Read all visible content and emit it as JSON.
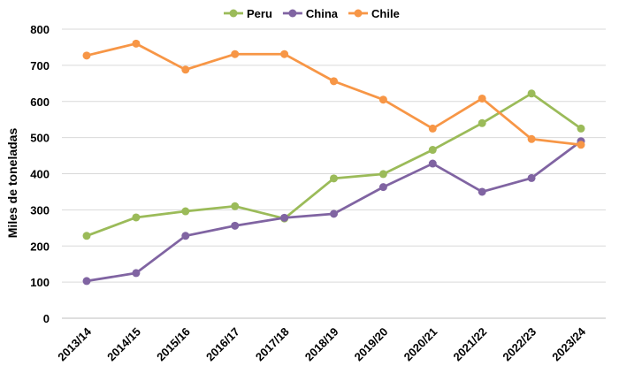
{
  "chart_data": {
    "type": "line",
    "title": "",
    "xlabel": "",
    "ylabel": "Miles de toneladas",
    "ylim": [
      0,
      800
    ],
    "yticks": [
      0,
      100,
      200,
      300,
      400,
      500,
      600,
      700,
      800
    ],
    "grid": true,
    "legend_position": "top-center",
    "categories": [
      "2013/14",
      "2014/15",
      "2015/16",
      "2016/17",
      "2017/18",
      "2018/19",
      "2019/20",
      "2020/21",
      "2021/22",
      "2022/23",
      "2023/24"
    ],
    "series": [
      {
        "name": "Peru",
        "color": "#9BBB59",
        "values": [
          228,
          279,
          296,
          310,
          276,
          387,
          399,
          466,
          540,
          622,
          525
        ]
      },
      {
        "name": "China",
        "color": "#8064A2",
        "values": [
          103,
          125,
          228,
          256,
          278,
          289,
          363,
          428,
          350,
          388,
          490
        ]
      },
      {
        "name": "Chile",
        "color": "#F79646",
        "values": [
          727,
          760,
          688,
          731,
          731,
          656,
          605,
          525,
          608,
          496,
          480
        ]
      }
    ]
  }
}
